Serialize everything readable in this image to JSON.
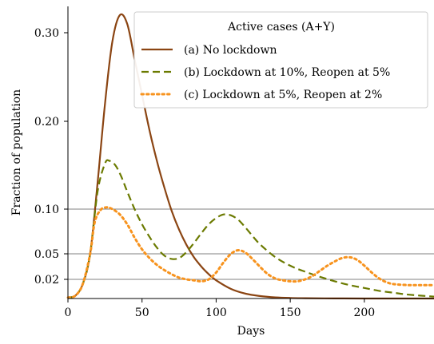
{
  "chart_data": {
    "type": "line",
    "xlabel": "Days",
    "ylabel": "Fraction of population",
    "xlim": [
      0,
      247
    ],
    "ylim": [
      0,
      0.33
    ],
    "xticks": [
      0,
      50,
      100,
      150,
      200
    ],
    "xtick_labels": [
      "0",
      "50",
      "100",
      "150",
      "200"
    ],
    "yticks": [
      0.02,
      0.05,
      0.1,
      0.2,
      0.3
    ],
    "ytick_labels": [
      "0.02",
      "0.05",
      "0.10",
      "0.20",
      "0.30"
    ],
    "hlines": [
      0.02,
      0.05,
      0.1
    ],
    "grid": false,
    "legend": {
      "title": "Active cases (A+Y)",
      "placement": "top-right"
    },
    "series": [
      {
        "name": "(a) No lockdown",
        "color": "#8B4513",
        "style": "solid",
        "x": [
          0,
          5,
          10,
          15,
          20,
          25,
          30,
          35,
          40,
          45,
          50,
          55,
          60,
          65,
          70,
          75,
          80,
          85,
          90,
          95,
          100,
          110,
          120,
          130,
          140,
          150,
          160,
          180,
          200,
          247
        ],
        "y": [
          0.001,
          0.003,
          0.015,
          0.05,
          0.13,
          0.22,
          0.29,
          0.32,
          0.31,
          0.27,
          0.23,
          0.19,
          0.155,
          0.125,
          0.098,
          0.077,
          0.06,
          0.046,
          0.035,
          0.026,
          0.019,
          0.01,
          0.005,
          0.0025,
          0.0012,
          0.0006,
          0.0003,
          0.0001,
          3e-05,
          0.0
        ]
      },
      {
        "name": "(b) Lockdown at 10%, Reopen at 5%",
        "color": "#6B7A00",
        "style": "dashed",
        "x": [
          0,
          5,
          10,
          15,
          20,
          25,
          28,
          32,
          36,
          40,
          45,
          50,
          55,
          60,
          65,
          70,
          75,
          80,
          85,
          90,
          95,
          100,
          105,
          110,
          115,
          120,
          125,
          130,
          140,
          150,
          160,
          170,
          180,
          190,
          200,
          210,
          220,
          230,
          247
        ],
        "y": [
          0.001,
          0.003,
          0.015,
          0.05,
          0.12,
          0.152,
          0.155,
          0.15,
          0.137,
          0.12,
          0.1,
          0.083,
          0.069,
          0.057,
          0.048,
          0.044,
          0.045,
          0.052,
          0.062,
          0.073,
          0.083,
          0.09,
          0.094,
          0.093,
          0.088,
          0.079,
          0.069,
          0.06,
          0.046,
          0.036,
          0.029,
          0.023,
          0.018,
          0.014,
          0.011,
          0.008,
          0.006,
          0.004,
          0.002
        ]
      },
      {
        "name": "(c) Lockdown at 5%, Reopen at 2%",
        "color": "#F7931E",
        "style": "dotted",
        "x": [
          0,
          5,
          10,
          15,
          18,
          22,
          26,
          30,
          35,
          40,
          45,
          50,
          55,
          60,
          65,
          70,
          75,
          80,
          85,
          90,
          95,
          100,
          105,
          110,
          115,
          120,
          125,
          130,
          135,
          140,
          145,
          150,
          155,
          160,
          165,
          170,
          175,
          180,
          185,
          190,
          195,
          200,
          205,
          210,
          215,
          220,
          230,
          240,
          247
        ],
        "y": [
          0.001,
          0.003,
          0.015,
          0.05,
          0.085,
          0.099,
          0.102,
          0.1,
          0.094,
          0.083,
          0.068,
          0.055,
          0.045,
          0.037,
          0.031,
          0.026,
          0.022,
          0.02,
          0.019,
          0.018,
          0.02,
          0.028,
          0.04,
          0.05,
          0.054,
          0.051,
          0.043,
          0.034,
          0.026,
          0.021,
          0.019,
          0.018,
          0.018,
          0.02,
          0.024,
          0.03,
          0.036,
          0.041,
          0.045,
          0.046,
          0.043,
          0.036,
          0.028,
          0.021,
          0.017,
          0.015,
          0.014,
          0.014,
          0.014
        ]
      }
    ]
  }
}
